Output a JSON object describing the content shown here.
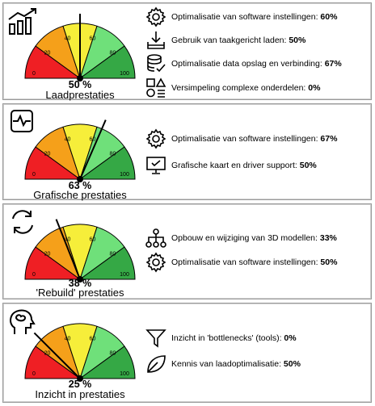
{
  "colors": {
    "red": "#ef1f24",
    "orange": "#f5a01a",
    "yellow": "#f6ee3a",
    "lightgreen": "#6fe07a",
    "green": "#35a845"
  },
  "tick_labels": [
    "0",
    "20",
    "40",
    "60",
    "80",
    "100"
  ],
  "panels": [
    {
      "percent_value": 50,
      "percent_text": "50 %",
      "label": "Laadprestaties",
      "icon": "bar-chart-trend-icon",
      "items": [
        {
          "icon": "gear-icon",
          "text": "Optimalisatie van software instellingen: ",
          "value": "60%"
        },
        {
          "icon": "download-tray-icon",
          "text": "Gebruik van taakgericht laden: ",
          "value": "50%"
        },
        {
          "icon": "database-check-icon",
          "text": "Optimalisatie data opslag en verbinding: ",
          "value": "67%"
        },
        {
          "icon": "shapes-icon",
          "text": "Versimpeling complexe onderdelen: ",
          "value": "0%"
        }
      ]
    },
    {
      "percent_value": 63,
      "percent_text": "63 %",
      "label": "Grafische prestaties",
      "icon": "pulse-monitor-icon",
      "items": [
        {
          "icon": "gear-icon",
          "text": "Optimalisatie van software instellingen: ",
          "value": "67%"
        },
        {
          "icon": "monitor-check-icon",
          "text": "Grafische kaart en driver support: ",
          "value": "50%"
        }
      ]
    },
    {
      "percent_value": 38,
      "percent_text": "38 %",
      "label": "'Rebuild' prestaties",
      "icon": "refresh-cycle-icon",
      "items": [
        {
          "icon": "hierarchy-icon",
          "text": "Opbouw en wijziging van 3D modellen: ",
          "value": "33%"
        },
        {
          "icon": "gear-icon",
          "text": "Optimalisatie van software instellingen: ",
          "value": "50%"
        }
      ]
    },
    {
      "percent_value": 25,
      "percent_text": "25 %",
      "label": "Inzicht in prestaties",
      "icon": "head-brain-icon",
      "items": [
        {
          "icon": "funnel-icon",
          "text": "Inzicht in 'bottlenecks' (tools): ",
          "value": "0%"
        },
        {
          "icon": "leaf-icon",
          "text": "Kennis van laadoptimalisatie: ",
          "value": "50%"
        }
      ]
    }
  ]
}
